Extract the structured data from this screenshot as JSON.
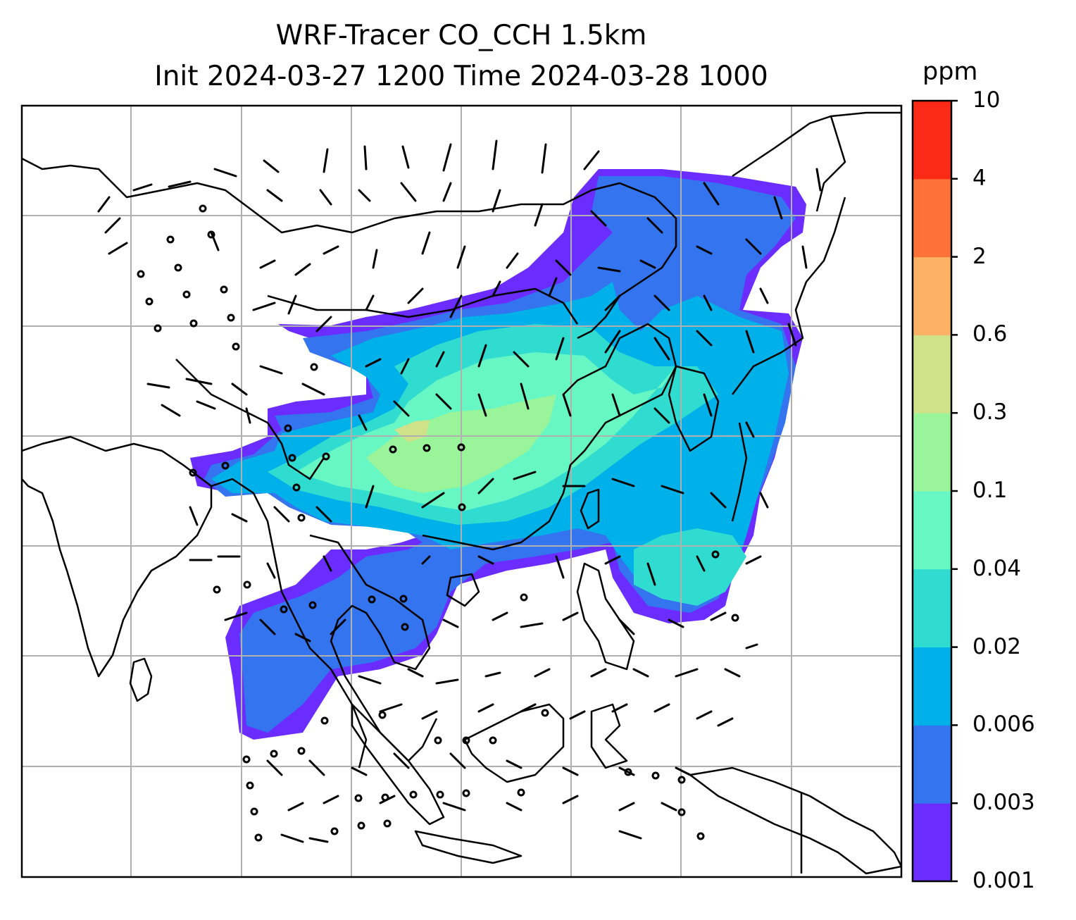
{
  "title": {
    "line1": "WRF-Tracer CO_CCH 1.5km",
    "line2": "Init 2024-03-27 1200 Time 2024-03-28 1000"
  },
  "colorbar": {
    "unit": "ppm",
    "ticks": [
      "0.001",
      "0.003",
      "0.006",
      "0.02",
      "0.04",
      "0.1",
      "0.3",
      "0.6",
      "2",
      "4",
      "10"
    ],
    "colors": [
      "#6a2cff",
      "#3474ef",
      "#00b0e8",
      "#30dcd0",
      "#66f7c4",
      "#9af59a",
      "#cfe28a",
      "#fdb164",
      "#fd7239",
      "#fb2a16"
    ]
  },
  "map": {
    "background": "#ffffff",
    "coastline_color": "#000000",
    "gridline_color": "#b0b0b0",
    "features": [
      "coastlines",
      "gridlines",
      "wind-barbs",
      "tracer-concentration-shading"
    ]
  }
}
